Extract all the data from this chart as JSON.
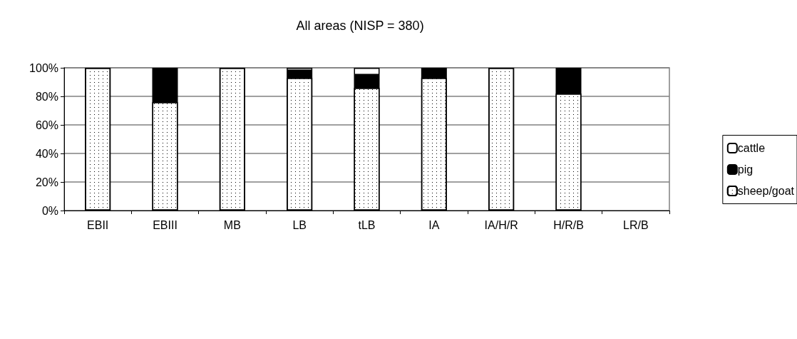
{
  "chart_data": {
    "type": "bar",
    "title": "All areas (NISP = 380)",
    "categories": [
      "EBII",
      "EBIII",
      "MB",
      "LB",
      "tLB",
      "IA",
      "IA/H/R",
      "H/R/B",
      "LR/B"
    ],
    "stacked": true,
    "series": [
      {
        "name": "sheep/goat",
        "color": "#ffffff",
        "values": [
          100,
          76,
          100,
          93,
          86,
          93,
          100,
          82,
          null
        ]
      },
      {
        "name": "pig",
        "color": "#000000",
        "values": [
          null,
          24,
          null,
          5,
          9,
          7,
          null,
          18,
          null
        ]
      },
      {
        "name": "cattle",
        "color": "#ffffff",
        "values": [
          null,
          null,
          null,
          2,
          5,
          null,
          null,
          null,
          null
        ]
      }
    ],
    "ylim": [
      0,
      100
    ],
    "yticks": [
      {
        "value": 0,
        "label": "0%"
      },
      {
        "value": 20,
        "label": "20%"
      },
      {
        "value": 40,
        "label": "40%"
      },
      {
        "value": 60,
        "label": "60%"
      },
      {
        "value": 80,
        "label": "80%"
      },
      {
        "value": 100,
        "label": "100%"
      }
    ],
    "grid": "y",
    "legend": "right"
  }
}
